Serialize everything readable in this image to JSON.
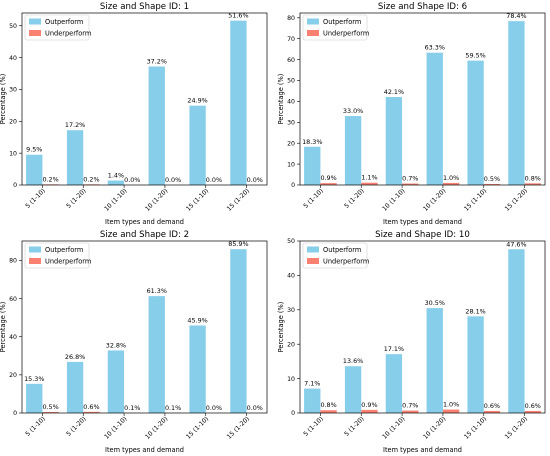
{
  "colors": {
    "outperform": "#87ceeb",
    "underperform": "#fa8072"
  },
  "chart_data": [
    {
      "type": "bar",
      "title": "Size and Shape ID: 1",
      "xlabel": "Item types and demand",
      "ylabel": "Percentage (%)",
      "categories": [
        "5 (1-10)",
        "5 (1-20)",
        "10 (1-10)",
        "10 (1-20)",
        "15 (1-10)",
        "15 (1-20)"
      ],
      "ylim": [
        0,
        54
      ],
      "yticks": [
        0,
        10,
        20,
        30,
        40,
        50
      ],
      "legend": "top-left",
      "series": [
        {
          "name": "Outperform",
          "values": [
            9.5,
            17.2,
            1.4,
            37.2,
            24.9,
            51.6
          ],
          "labels": [
            "9.5%",
            "17.2%",
            "1.4%",
            "37.2%",
            "24.9%",
            "51.6%"
          ]
        },
        {
          "name": "Underperform",
          "values": [
            0.2,
            0.2,
            0.0,
            0.0,
            0.0,
            0.0
          ],
          "labels": [
            "0.2%",
            "0.2%",
            "0.0%",
            "0.0%",
            "0.0%",
            "0.0%"
          ]
        }
      ]
    },
    {
      "type": "bar",
      "title": "Size and Shape ID: 6",
      "xlabel": "Item types and demand",
      "ylabel": "Percentage (%)",
      "categories": [
        "5 (1-10)",
        "5 (1-20)",
        "10 (1-10)",
        "10 (1-20)",
        "15 (1-10)",
        "15 (1-20)"
      ],
      "ylim": [
        0,
        82.3
      ],
      "yticks": [
        0,
        10,
        20,
        30,
        40,
        50,
        60,
        70,
        80
      ],
      "legend": "top-left",
      "series": [
        {
          "name": "Outperform",
          "values": [
            18.3,
            33.0,
            42.1,
            63.3,
            59.5,
            78.4
          ],
          "labels": [
            "18.3%",
            "33.0%",
            "42.1%",
            "63.3%",
            "59.5%",
            "78.4%"
          ]
        },
        {
          "name": "Underperform",
          "values": [
            0.9,
            1.1,
            0.7,
            1.0,
            0.5,
            0.8
          ],
          "labels": [
            "0.9%",
            "1.1%",
            "0.7%",
            "1.0%",
            "0.5%",
            "0.8%"
          ]
        }
      ]
    },
    {
      "type": "bar",
      "title": "Size and Shape ID: 2",
      "xlabel": "Item types and demand",
      "ylabel": "Percentage (%)",
      "categories": [
        "5 (1-10)",
        "5 (1-20)",
        "10 (1-10)",
        "10 (1-20)",
        "15 (1-10)",
        "15 (1-20)"
      ],
      "ylim": [
        0,
        90.2
      ],
      "yticks": [
        0,
        20,
        40,
        60,
        80
      ],
      "legend": "top-left",
      "series": [
        {
          "name": "Outperform",
          "values": [
            15.3,
            26.8,
            32.8,
            61.3,
            45.9,
            85.9
          ],
          "labels": [
            "15.3%",
            "26.8%",
            "32.8%",
            "61.3%",
            "45.9%",
            "85.9%"
          ]
        },
        {
          "name": "Underperform",
          "values": [
            0.5,
            0.6,
            0.1,
            0.1,
            0.0,
            0.0
          ],
          "labels": [
            "0.5%",
            "0.6%",
            "0.1%",
            "0.1%",
            "0.0%",
            "0.0%"
          ]
        }
      ]
    },
    {
      "type": "bar",
      "title": "Size and Shape ID: 10",
      "xlabel": "Item types and demand",
      "ylabel": "Percentage (%)",
      "categories": [
        "5 (1-10)",
        "5 (1-20)",
        "10 (1-10)",
        "10 (1-20)",
        "15 (1-10)",
        "15 (1-20)"
      ],
      "ylim": [
        0,
        50.0
      ],
      "yticks": [
        0,
        10,
        20,
        30,
        40,
        50
      ],
      "legend": "top-left",
      "series": [
        {
          "name": "Outperform",
          "values": [
            7.1,
            13.6,
            17.1,
            30.5,
            28.1,
            47.6
          ],
          "labels": [
            "7.1%",
            "13.6%",
            "17.1%",
            "30.5%",
            "28.1%",
            "47.6%"
          ]
        },
        {
          "name": "Underperform",
          "values": [
            0.8,
            0.9,
            0.7,
            1.0,
            0.6,
            0.6
          ],
          "labels": [
            "0.8%",
            "0.9%",
            "0.7%",
            "1.0%",
            "0.6%",
            "0.6%"
          ]
        }
      ]
    }
  ]
}
